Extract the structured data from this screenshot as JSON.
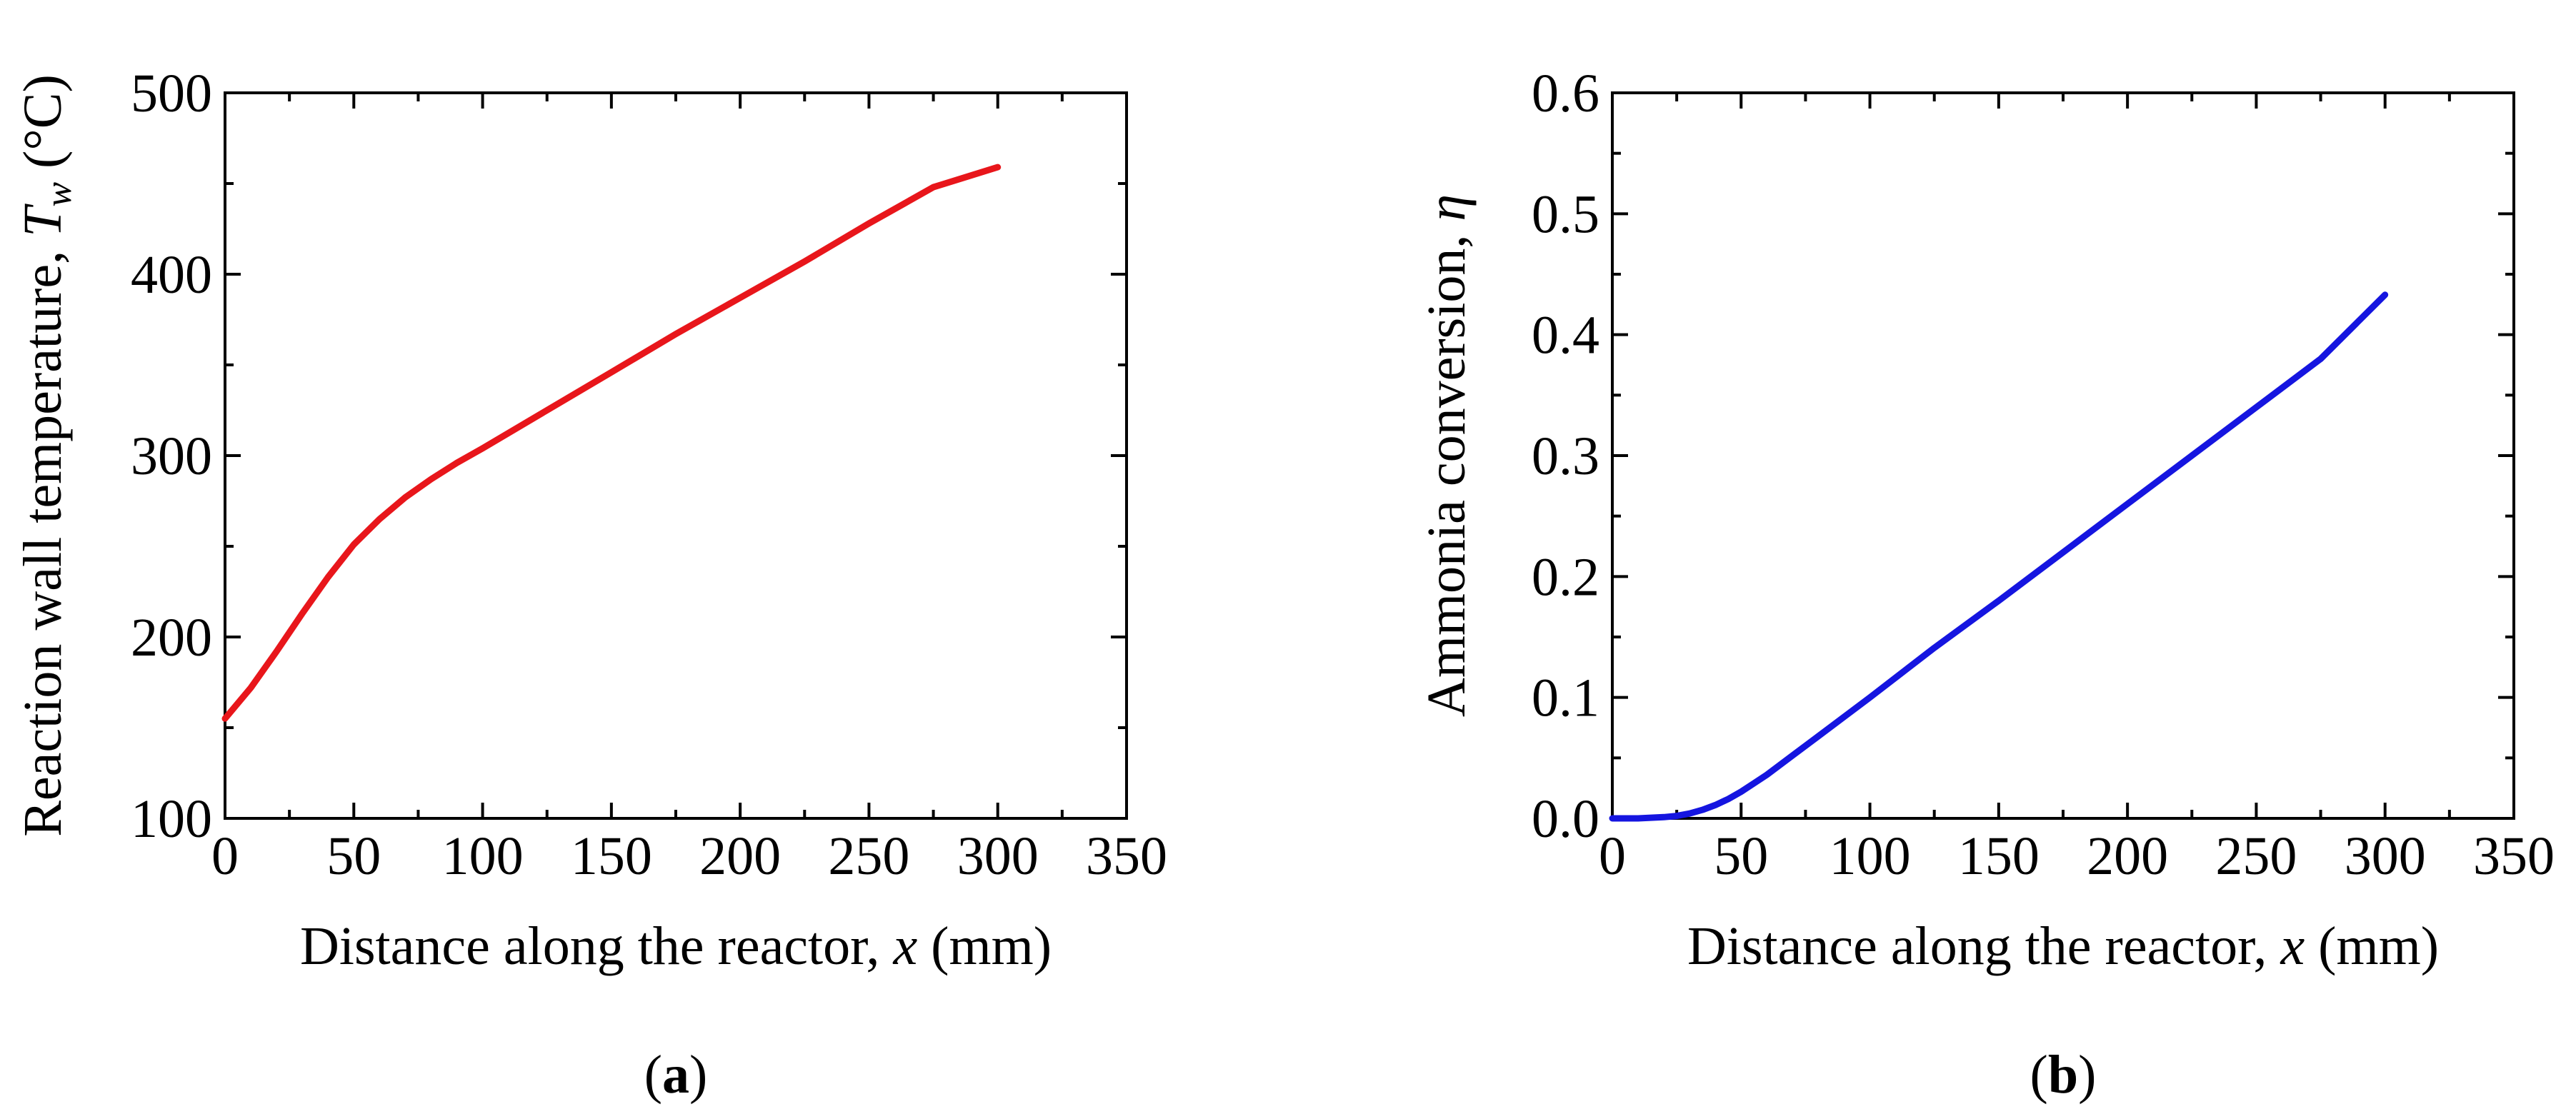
{
  "chart_data": [
    {
      "type": "line",
      "panel_label": {
        "open": "(",
        "letter": "a",
        "close": ")"
      },
      "xlabel": {
        "main": "Distance along the reactor, ",
        "var": "x",
        "unit": " (mm)"
      },
      "ylabel": {
        "main": "Reaction wall temperature, ",
        "var": "T",
        "sub": "w",
        "unit": " (°C)"
      },
      "xlim": [
        0,
        350
      ],
      "ylim": [
        100,
        500
      ],
      "xticks": [
        "0",
        "50",
        "100",
        "150",
        "200",
        "250",
        "300",
        "350"
      ],
      "yticks": [
        "100",
        "200",
        "300",
        "400",
        "500"
      ],
      "grid": false,
      "series": [
        {
          "name": "Wall temperature",
          "color": "#e8161b",
          "x": [
            0,
            10,
            20,
            30,
            40,
            50,
            60,
            70,
            80,
            90,
            100,
            125,
            150,
            175,
            200,
            225,
            250,
            275,
            300
          ],
          "y": [
            155,
            172,
            192,
            213,
            233,
            251,
            265,
            277,
            287,
            296,
            304,
            325,
            346,
            367,
            387,
            407,
            428,
            448,
            459
          ]
        }
      ]
    },
    {
      "type": "line",
      "panel_label": {
        "open": "(",
        "letter": "b",
        "close": ")"
      },
      "xlabel": {
        "main": "Distance along the reactor, ",
        "var": "x",
        "unit": " (mm)"
      },
      "ylabel": {
        "main": "Ammonia conversion, ",
        "var": "η",
        "sub": "",
        "unit": ""
      },
      "xlim": [
        0,
        350
      ],
      "ylim": [
        0,
        0.6
      ],
      "xticks": [
        "0",
        "50",
        "100",
        "150",
        "200",
        "250",
        "300",
        "350"
      ],
      "yticks": [
        "0.0",
        "0.1",
        "0.2",
        "0.3",
        "0.4",
        "0.5",
        "0.6"
      ],
      "grid": false,
      "series": [
        {
          "name": "Ammonia conversion",
          "color": "#1515e0",
          "x": [
            0,
            10,
            20,
            25,
            30,
            35,
            40,
            45,
            50,
            55,
            60,
            70,
            80,
            90,
            100,
            125,
            150,
            175,
            200,
            225,
            250,
            275,
            300
          ],
          "y": [
            0,
            0,
            0.001,
            0.002,
            0.004,
            0.007,
            0.011,
            0.016,
            0.022,
            0.029,
            0.036,
            0.052,
            0.068,
            0.084,
            0.1,
            0.141,
            0.18,
            0.22,
            0.26,
            0.3,
            0.34,
            0.38,
            0.433
          ]
        }
      ]
    }
  ]
}
